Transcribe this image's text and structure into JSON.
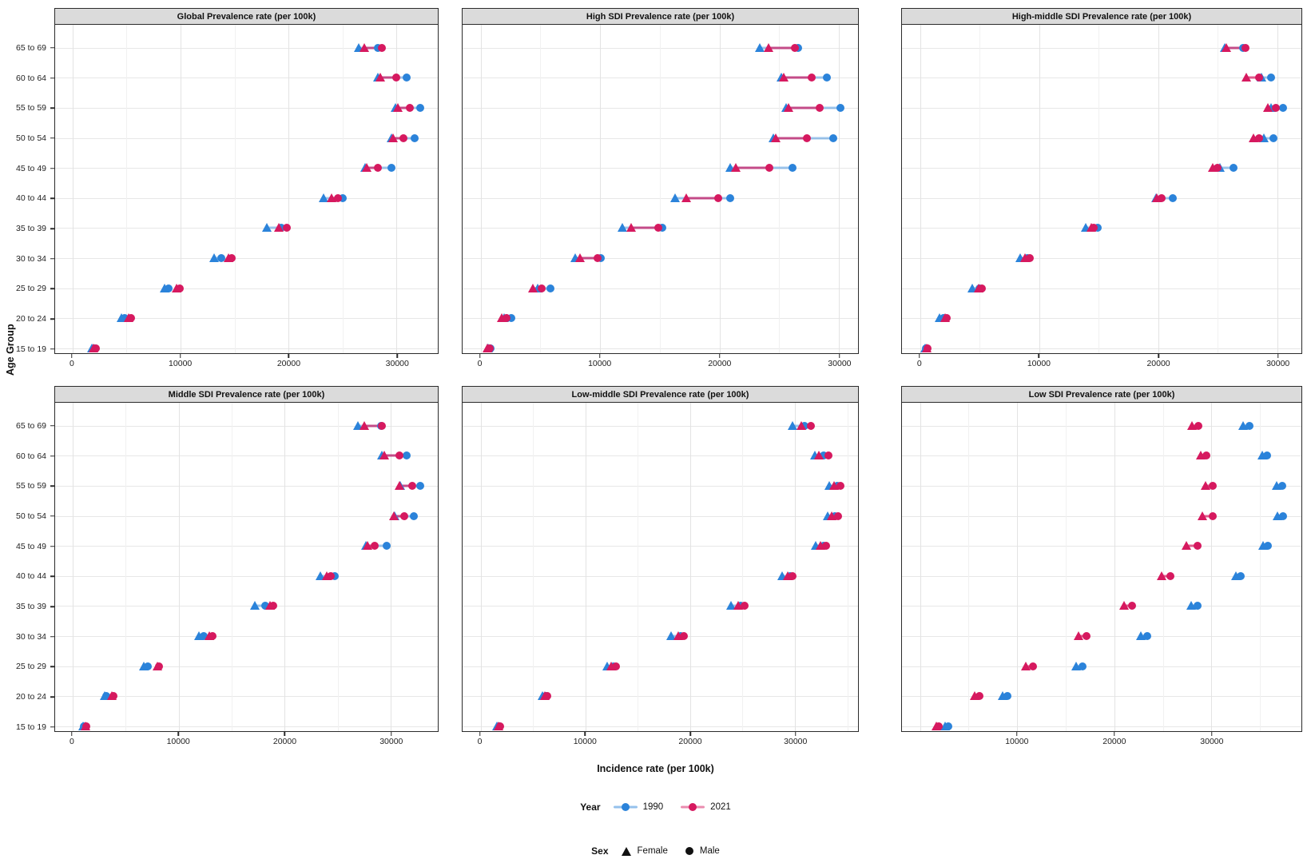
{
  "figure": {
    "y_axis_title": "Age Group",
    "x_axis_title": "Incidence rate (per 100k)",
    "age_groups_top_to_bottom": [
      "65 to 69",
      "60 to 64",
      "55 to 59",
      "50 to 54",
      "45 to 49",
      "40 to 44",
      "35 to 39",
      "30 to 34",
      "25 to 29",
      "20 to 24",
      "15 to 19"
    ],
    "legend_year": {
      "title": "Year",
      "items": [
        {
          "label": "1990",
          "color": "#2b83da"
        },
        {
          "label": "2021",
          "color": "#d6195f"
        }
      ]
    },
    "legend_sex": {
      "title": "Sex",
      "items": [
        {
          "label": "Female",
          "shape": "triangle"
        },
        {
          "label": "Male",
          "shape": "circle"
        }
      ]
    },
    "colors": {
      "year_1990": "#2b83da",
      "year_2021": "#d6195f",
      "line_1990": "rgba(43,131,218,0.45)",
      "line_2021": "rgba(214,25,95,0.7)",
      "facet_header_bg": "#dbdbdb",
      "panel_border": "#2b2b2b",
      "grid_major": "#e3e3e3",
      "grid_minor": "#f1f1f1"
    }
  },
  "chart_data": [
    {
      "type": "scatter",
      "title": "Global Prevalence rate (per 100k)",
      "xlabel": "Incidence rate (per 100k)",
      "x_ticks": [
        0,
        10000,
        20000,
        30000
      ],
      "categories": [
        "65 to 69",
        "60 to 64",
        "55 to 59",
        "50 to 54",
        "45 to 49",
        "40 to 44",
        "35 to 39",
        "30 to 34",
        "25 to 29",
        "20 to 24",
        "15 to 19"
      ],
      "series": [
        {
          "name": "Female 1990",
          "sex": "Female",
          "year": "1990",
          "marker": "triangle",
          "values": [
            26500,
            28300,
            29900,
            29500,
            27100,
            23200,
            18000,
            13100,
            8500,
            4500,
            1800
          ]
        },
        {
          "name": "Male 1990",
          "sex": "Male",
          "year": "1990",
          "marker": "circle",
          "values": [
            28300,
            30900,
            32200,
            31700,
            29500,
            25000,
            19300,
            13800,
            8900,
            4800,
            2050
          ]
        },
        {
          "name": "Female 2021",
          "sex": "Female",
          "year": "2021",
          "marker": "triangle",
          "values": [
            27000,
            28500,
            30100,
            29700,
            27200,
            24000,
            19100,
            14400,
            9600,
            5200,
            1950
          ]
        },
        {
          "name": "Male 2021",
          "sex": "Male",
          "year": "2021",
          "marker": "circle",
          "values": [
            28600,
            30000,
            31200,
            30600,
            28300,
            24600,
            19800,
            14700,
            9900,
            5400,
            2150
          ]
        }
      ]
    },
    {
      "type": "scatter",
      "title": "High SDI Prevalence rate (per 100k)",
      "xlabel": "Incidence rate (per 100k)",
      "x_ticks": [
        0,
        10000,
        20000,
        30000
      ],
      "categories": [
        "65 to 69",
        "60 to 64",
        "55 to 59",
        "50 to 54",
        "45 to 49",
        "40 to 44",
        "35 to 39",
        "30 to 34",
        "25 to 29",
        "20 to 24",
        "15 to 19"
      ],
      "series": [
        {
          "name": "Female 1990",
          "sex": "Female",
          "year": "1990",
          "marker": "triangle",
          "values": [
            23400,
            25200,
            25600,
            24500,
            20900,
            16300,
            11900,
            7900,
            4750,
            2000,
            650
          ]
        },
        {
          "name": "Male 1990",
          "sex": "Male",
          "year": "1990",
          "marker": "circle",
          "values": [
            26600,
            29000,
            30100,
            29500,
            26100,
            20900,
            15200,
            10100,
            5850,
            2600,
            850
          ]
        },
        {
          "name": "Female 2021",
          "sex": "Female",
          "year": "2021",
          "marker": "triangle",
          "values": [
            24100,
            25400,
            25800,
            24700,
            21400,
            17200,
            12600,
            8300,
            4400,
            1800,
            550
          ]
        },
        {
          "name": "Male 2021",
          "sex": "Male",
          "year": "2021",
          "marker": "circle",
          "values": [
            26350,
            27700,
            28400,
            27300,
            24200,
            19900,
            14900,
            9800,
            5150,
            2200,
            750
          ]
        }
      ]
    },
    {
      "type": "scatter",
      "title": "High-middle SDI Prevalence rate (per 100k)",
      "xlabel": "Incidence rate (per 100k)",
      "x_ticks": [
        0,
        10000,
        20000,
        30000
      ],
      "categories": [
        "65 to 69",
        "60 to 64",
        "55 to 59",
        "50 to 54",
        "45 to 49",
        "40 to 44",
        "35 to 39",
        "30 to 34",
        "25 to 29",
        "20 to 24",
        "15 to 19"
      ],
      "series": [
        {
          "name": "Female 1990",
          "sex": "Female",
          "year": "1990",
          "marker": "triangle",
          "values": [
            25600,
            28700,
            29500,
            28900,
            25200,
            19800,
            13900,
            8400,
            4350,
            1600,
            450
          ]
        },
        {
          "name": "Male 1990",
          "sex": "Male",
          "year": "1990",
          "marker": "circle",
          "values": [
            27100,
            29500,
            30500,
            29700,
            26300,
            21200,
            14900,
            9000,
            5000,
            1950,
            500
          ]
        },
        {
          "name": "Female 2021",
          "sex": "Female",
          "year": "2021",
          "marker": "triangle",
          "values": [
            25700,
            27400,
            29200,
            28000,
            24600,
            19900,
            14400,
            8800,
            4950,
            2100,
            550
          ]
        },
        {
          "name": "Male 2021",
          "sex": "Male",
          "year": "2021",
          "marker": "circle",
          "values": [
            27300,
            28500,
            29900,
            28500,
            25000,
            20300,
            14600,
            9200,
            5200,
            2250,
            620
          ]
        }
      ]
    },
    {
      "type": "scatter",
      "title": "Middle SDI Prevalence rate (per 100k)",
      "xlabel": "Incidence rate (per 100k)",
      "x_ticks": [
        0,
        10000,
        20000,
        30000
      ],
      "categories": [
        "65 to 69",
        "60 to 64",
        "55 to 59",
        "50 to 54",
        "45 to 49",
        "40 to 44",
        "35 to 39",
        "30 to 34",
        "25 to 29",
        "20 to 24",
        "15 to 19"
      ],
      "series": [
        {
          "name": "Female 1990",
          "sex": "Female",
          "year": "1990",
          "marker": "triangle",
          "values": [
            26900,
            29200,
            30900,
            30400,
            27650,
            23350,
            17200,
            11900,
            6700,
            3000,
            1000
          ]
        },
        {
          "name": "Male 1990",
          "sex": "Male",
          "year": "1990",
          "marker": "circle",
          "values": [
            29100,
            31500,
            32800,
            32200,
            29600,
            24750,
            18200,
            12400,
            7100,
            3200,
            1100
          ]
        },
        {
          "name": "Female 2021",
          "sex": "Female",
          "year": "2021",
          "marker": "triangle",
          "values": [
            27500,
            29400,
            30800,
            30300,
            27800,
            24000,
            18650,
            12900,
            8000,
            3700,
            1200
          ]
        },
        {
          "name": "Male 2021",
          "sex": "Male",
          "year": "2021",
          "marker": "circle",
          "values": [
            29200,
            30800,
            32000,
            31250,
            28500,
            24350,
            18950,
            13200,
            8150,
            3850,
            1300
          ]
        }
      ]
    },
    {
      "type": "scatter",
      "title": "Low-middle SDI Prevalence rate (per 100k)",
      "xlabel": "Incidence rate (per 100k)",
      "x_ticks": [
        0,
        10000,
        20000,
        30000
      ],
      "categories": [
        "65 to 69",
        "60 to 64",
        "55 to 59",
        "50 to 54",
        "45 to 49",
        "40 to 44",
        "35 to 39",
        "30 to 34",
        "25 to 29",
        "20 to 24",
        "15 to 19"
      ],
      "series": [
        {
          "name": "Female 1990",
          "sex": "Female",
          "year": "1990",
          "marker": "triangle",
          "values": [
            29800,
            31900,
            33300,
            33100,
            32000,
            28800,
            23900,
            18200,
            12100,
            5900,
            1600
          ]
        },
        {
          "name": "Male 1990",
          "sex": "Male",
          "year": "1990",
          "marker": "circle",
          "values": [
            30900,
            32700,
            34000,
            33800,
            32700,
            29500,
            24800,
            19100,
            12700,
            6200,
            1800
          ]
        },
        {
          "name": "Female 2021",
          "sex": "Female",
          "year": "2021",
          "marker": "triangle",
          "values": [
            30600,
            32300,
            33700,
            33500,
            32400,
            29300,
            24600,
            18900,
            12500,
            6100,
            1750
          ]
        },
        {
          "name": "Male 2021",
          "sex": "Male",
          "year": "2021",
          "marker": "circle",
          "values": [
            31550,
            33200,
            34300,
            34100,
            33000,
            29800,
            25200,
            19400,
            12900,
            6400,
            1900
          ]
        }
      ]
    },
    {
      "type": "scatter",
      "title": "Low SDI Prevalence rate (per 100k)",
      "xlabel": "Incidence rate (per 100k)",
      "x_ticks": [
        10000,
        20000,
        30000
      ],
      "categories": [
        "65 to 69",
        "60 to 64",
        "55 to 59",
        "50 to 54",
        "45 to 49",
        "40 to 44",
        "35 to 39",
        "30 to 34",
        "25 to 29",
        "20 to 24",
        "15 to 19"
      ],
      "series": [
        {
          "name": "Female 1990",
          "sex": "Female",
          "year": "1990",
          "marker": "triangle",
          "values": [
            33300,
            35200,
            36700,
            36800,
            35350,
            32500,
            27900,
            22700,
            16100,
            8500,
            2550
          ]
        },
        {
          "name": "Male 1990",
          "sex": "Male",
          "year": "1990",
          "marker": "circle",
          "values": [
            33900,
            35700,
            37300,
            37400,
            35850,
            33000,
            28600,
            23400,
            16700,
            9000,
            2900
          ]
        },
        {
          "name": "Female 2021",
          "sex": "Female",
          "year": "2021",
          "marker": "triangle",
          "values": [
            28000,
            28900,
            29400,
            29100,
            27450,
            24900,
            21000,
            16300,
            10900,
            5600,
            1700
          ]
        },
        {
          "name": "Male 2021",
          "sex": "Male",
          "year": "2021",
          "marker": "circle",
          "values": [
            28650,
            29500,
            30150,
            30100,
            28600,
            25800,
            21800,
            17100,
            11600,
            6150,
            1950
          ]
        }
      ]
    }
  ]
}
